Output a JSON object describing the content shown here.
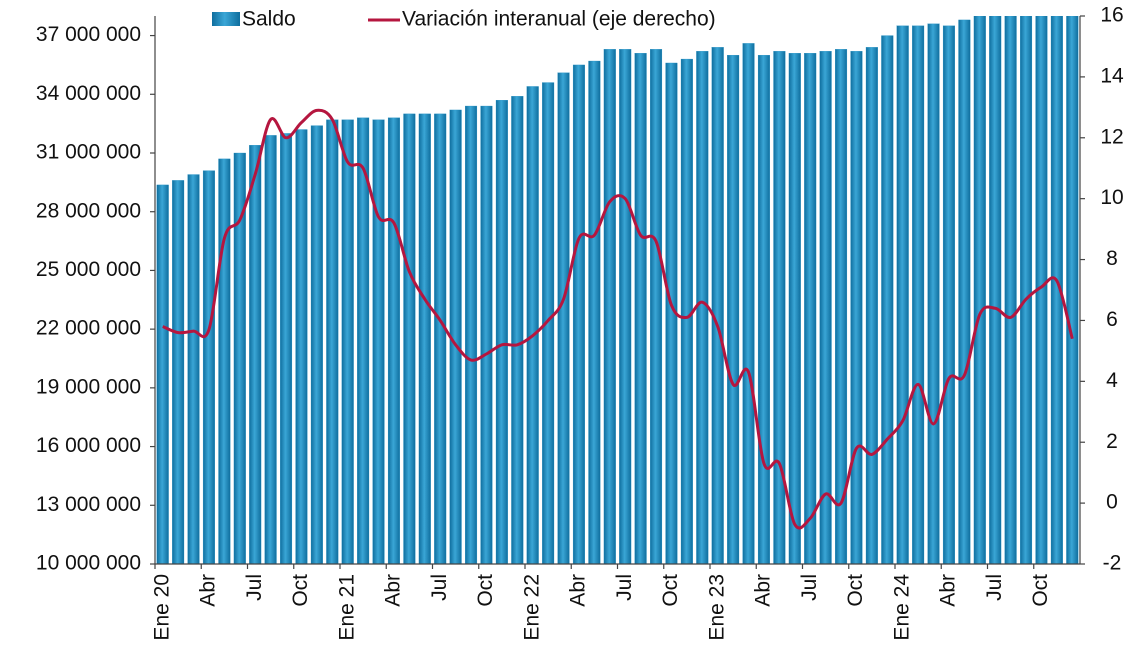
{
  "chart_data": {
    "type": "bar_line",
    "categories": [
      "Ene 20",
      null,
      null,
      "Abr",
      null,
      null,
      "Jul",
      null,
      null,
      "Oct",
      null,
      null,
      "Ene 21",
      null,
      null,
      "Abr",
      null,
      null,
      "Jul",
      null,
      null,
      "Oct",
      null,
      null,
      "Ene 22",
      null,
      null,
      "Abr",
      null,
      null,
      "Jul",
      null,
      null,
      "Oct",
      null,
      null,
      "Ene 23",
      null,
      null,
      "Abr",
      null,
      null,
      "Jul",
      null,
      null,
      "Oct",
      null,
      null,
      "Ene 24",
      null,
      null,
      "Abr",
      null,
      null,
      "Jul",
      null,
      null,
      "Oct",
      null,
      null
    ],
    "series": [
      {
        "name": "Saldo",
        "color": "#1f8fc4",
        "values": [
          29370000,
          29600000,
          29900000,
          30100000,
          30700000,
          31000000,
          31400000,
          31900000,
          32000000,
          32200000,
          32400000,
          32700000,
          32700000,
          32800000,
          32700000,
          32800000,
          33000000,
          33000000,
          33000000,
          33200000,
          33400000,
          33400000,
          33700000,
          33900000,
          34400000,
          34600000,
          35100000,
          35500000,
          35700000,
          36300000,
          36300000,
          36100000,
          36300000,
          35600000,
          35800000,
          36200000,
          36400000,
          36000000,
          36600000,
          36000000,
          36200000,
          36100000,
          36100000,
          36200000,
          36300000,
          36200000,
          36400000,
          37000000,
          37500000,
          37500000,
          37600000,
          37500000,
          37800000,
          38100000,
          38300000,
          38400000,
          38500000,
          38600000,
          38700000,
          38800000
        ]
      },
      {
        "name": "Variación interanual (eje derecho)",
        "color": "#b5163f",
        "axis": "y2",
        "values": [
          5.8,
          5.6,
          5.65,
          5.7,
          8.7,
          9.3,
          10.8,
          12.6,
          12.0,
          12.5,
          12.9,
          12.6,
          11.2,
          11.0,
          9.4,
          9.2,
          7.6,
          6.7,
          6.0,
          5.2,
          4.7,
          4.9,
          5.2,
          5.2,
          5.5,
          6.0,
          6.7,
          8.7,
          8.8,
          9.9,
          10.0,
          8.8,
          8.6,
          6.5,
          6.1,
          6.6,
          5.8,
          3.9,
          4.3,
          1.3,
          1.3,
          -0.7,
          -0.5,
          0.3,
          0.0,
          1.8,
          1.6,
          2.1,
          2.7,
          3.9,
          2.6,
          4.1,
          4.2,
          6.2,
          6.4,
          6.1,
          6.7,
          7.1,
          7.3,
          5.4
        ]
      }
    ],
    "ylim": [
      10000000,
      38000000
    ],
    "yticks": [
      {
        "value": 10000000,
        "label": "10 000 000"
      },
      {
        "value": 13000000,
        "label": "13 000 000"
      },
      {
        "value": 16000000,
        "label": "16 000 000"
      },
      {
        "value": 19000000,
        "label": "19 000 000"
      },
      {
        "value": 22000000,
        "label": "22 000 000"
      },
      {
        "value": 25000000,
        "label": "25 000 000"
      },
      {
        "value": 28000000,
        "label": "28 000 000"
      },
      {
        "value": 31000000,
        "label": "31 000 000"
      },
      {
        "value": 34000000,
        "label": "34 000 000"
      },
      {
        "value": 37000000,
        "label": "37 000 000"
      }
    ],
    "y2lim": [
      -2,
      16
    ],
    "y2ticks": [
      -2,
      0,
      2,
      4,
      6,
      8,
      10,
      12,
      14,
      16
    ],
    "grid": false
  }
}
